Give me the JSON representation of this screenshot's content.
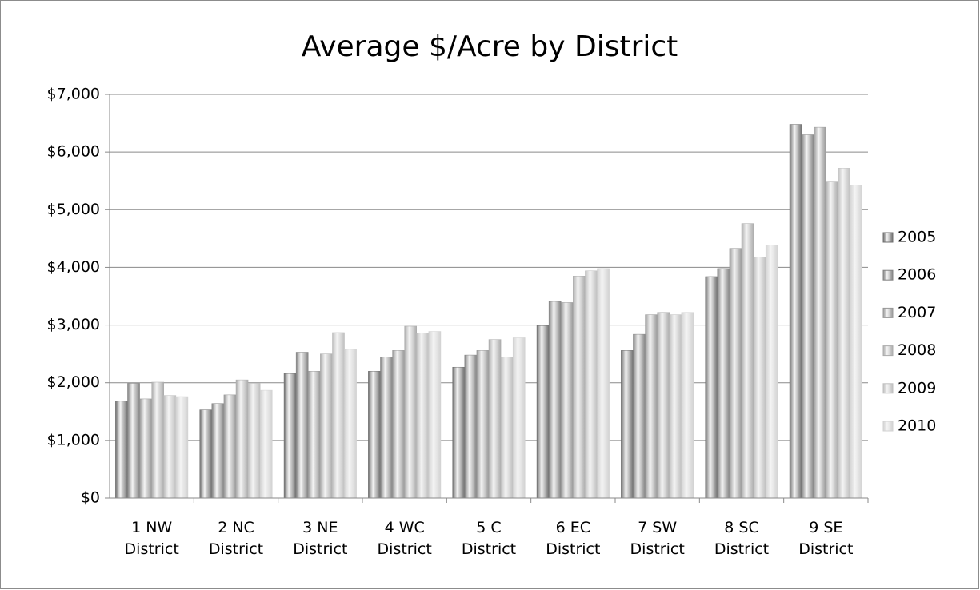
{
  "chart_data": {
    "type": "bar",
    "title": "Average $/Acre by District",
    "categories": [
      "1 NW District",
      "2 NC District",
      "3 NE District",
      "4 WC District",
      "5 C District",
      "6 EC District",
      "7 SW District",
      "8 SC District",
      "9 SE District"
    ],
    "series": [
      {
        "name": "2005",
        "color": "#6f6f6f",
        "values": [
          1680,
          1530,
          2160,
          2200,
          2270,
          2990,
          2560,
          3840,
          6480
        ]
      },
      {
        "name": "2006",
        "color": "#838383",
        "values": [
          1990,
          1640,
          2530,
          2450,
          2480,
          3410,
          2840,
          3980,
          6300
        ]
      },
      {
        "name": "2007",
        "color": "#989898",
        "values": [
          1720,
          1790,
          2200,
          2560,
          2560,
          3390,
          3180,
          4330,
          6430
        ]
      },
      {
        "name": "2008",
        "color": "#acacac",
        "values": [
          2010,
          2050,
          2500,
          2980,
          2750,
          3850,
          3220,
          4760,
          5480
        ]
      },
      {
        "name": "2009",
        "color": "#bfbfbf",
        "values": [
          1780,
          1990,
          2870,
          2860,
          2450,
          3940,
          3180,
          4180,
          5720
        ]
      },
      {
        "name": "2010",
        "color": "#d2d2d2",
        "values": [
          1760,
          1870,
          2580,
          2890,
          2780,
          3980,
          3220,
          4390,
          5430
        ]
      }
    ],
    "ylim": [
      0,
      7000
    ],
    "yticks": [
      {
        "value": 0,
        "label": "$0"
      },
      {
        "value": 1000,
        "label": "$1,000"
      },
      {
        "value": 2000,
        "label": "$2,000"
      },
      {
        "value": 3000,
        "label": "$3,000"
      },
      {
        "value": 4000,
        "label": "$4,000"
      },
      {
        "value": 5000,
        "label": "$5,000"
      },
      {
        "value": 6000,
        "label": "$6,000"
      },
      {
        "value": 7000,
        "label": "$7,000"
      }
    ],
    "grid": true,
    "legend": "right"
  }
}
